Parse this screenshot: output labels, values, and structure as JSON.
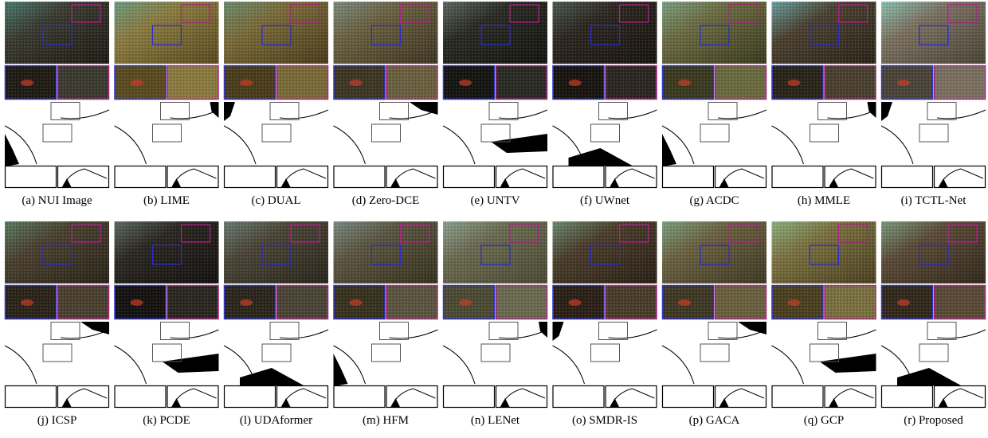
{
  "panels": [
    "(a) NUI Image",
    "(b) LIME",
    "(c) DUAL",
    "(d) Zero-DCE",
    "(e) UNTV",
    "(f) UWnet",
    "(g) ACDC",
    "(h) MMLE",
    "(i) TCTL-Net",
    "(j) ICSP",
    "(k) PCDE",
    "(l) UDAformer",
    "(m) HFM",
    "(n) LENet",
    "(o) SMDR-IS",
    "(p) GACA",
    "(q) GCP",
    "(r) Proposed"
  ]
}
